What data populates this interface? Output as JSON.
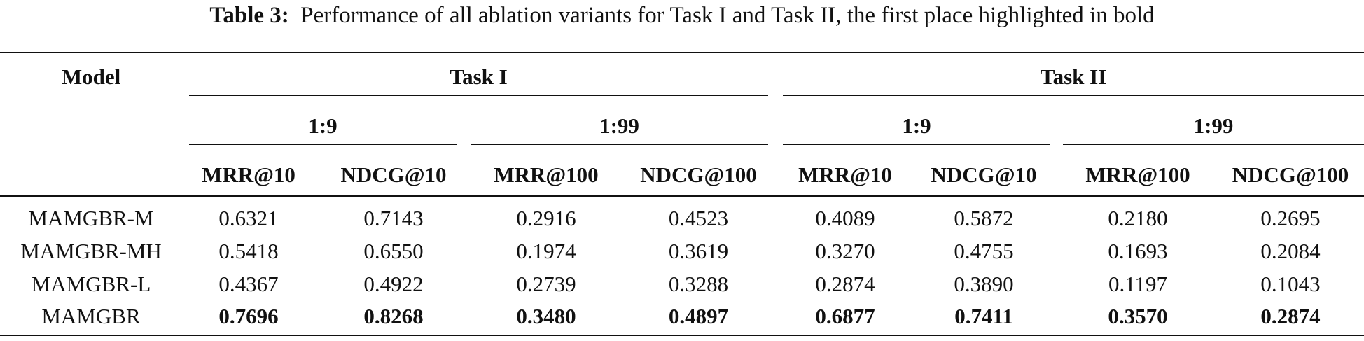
{
  "caption": {
    "label": "Table 3:",
    "text": "Performance of all ablation variants for Task I and Task II, the first place highlighted in bold"
  },
  "table": {
    "model_header": "Model",
    "tasks": [
      "Task I",
      "Task II"
    ],
    "ratios": [
      "1:9",
      "1:99",
      "1:9",
      "1:99"
    ],
    "metrics": [
      "MRR@10",
      "NDCG@10",
      "MRR@100",
      "NDCG@100",
      "MRR@10",
      "NDCG@10",
      "MRR@100",
      "NDCG@100"
    ],
    "rows": [
      {
        "model": "MAMGBR-M",
        "values": [
          "0.6321",
          "0.7143",
          "0.2916",
          "0.4523",
          "0.4089",
          "0.5872",
          "0.2180",
          "0.2695"
        ],
        "bold": false
      },
      {
        "model": "MAMGBR-MH",
        "values": [
          "0.5418",
          "0.6550",
          "0.1974",
          "0.3619",
          "0.3270",
          "0.4755",
          "0.1693",
          "0.2084"
        ],
        "bold": false
      },
      {
        "model": "MAMGBR-L",
        "values": [
          "0.4367",
          "0.4922",
          "0.2739",
          "0.3288",
          "0.2874",
          "0.3890",
          "0.1197",
          "0.1043"
        ],
        "bold": false
      },
      {
        "model": "MAMGBR",
        "values": [
          "0.7696",
          "0.8268",
          "0.3480",
          "0.4897",
          "0.6877",
          "0.7411",
          "0.3570",
          "0.2874"
        ],
        "bold": true
      }
    ]
  }
}
